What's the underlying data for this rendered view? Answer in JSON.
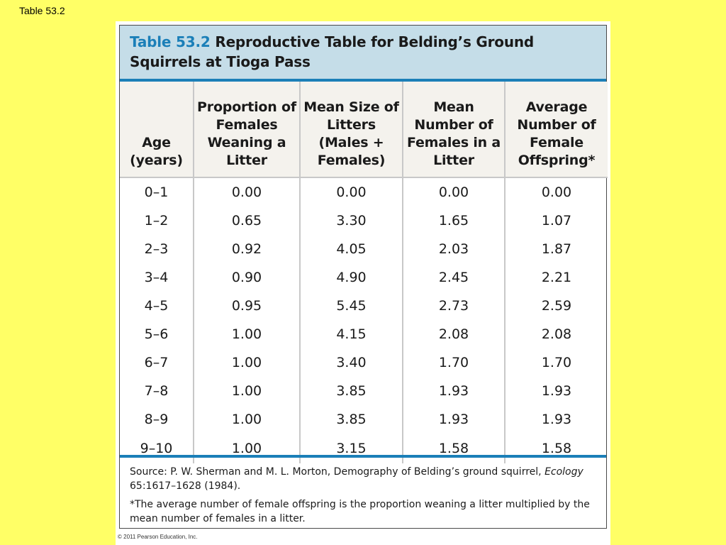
{
  "slide": {
    "title": "Table 53.2"
  },
  "table": {
    "caption_number": "Table 53.2",
    "caption_title": " Reproductive Table for Belding’s Ground Squirrels at Tioga Pass",
    "headers": [
      "Age (years)",
      "Proportion of Females Weaning a Litter",
      "Mean Size of Litters (Males + Females)",
      "Mean Number of Females in a Litter",
      "Average Number of Female Offspring*"
    ],
    "rows": [
      [
        "0–1",
        "0.00",
        "0.00",
        "0.00",
        "0.00"
      ],
      [
        "1–2",
        "0.65",
        "3.30",
        "1.65",
        "1.07"
      ],
      [
        "2–3",
        "0.92",
        "4.05",
        "2.03",
        "1.87"
      ],
      [
        "3–4",
        "0.90",
        "4.90",
        "2.45",
        "2.21"
      ],
      [
        "4–5",
        "0.95",
        "5.45",
        "2.73",
        "2.59"
      ],
      [
        "5–6",
        "1.00",
        "4.15",
        "2.08",
        "2.08"
      ],
      [
        "6–7",
        "1.00",
        "3.40",
        "1.70",
        "1.70"
      ],
      [
        "7–8",
        "1.00",
        "3.85",
        "1.93",
        "1.93"
      ],
      [
        "8–9",
        "1.00",
        "3.85",
        "1.93",
        "1.93"
      ],
      [
        "9–10",
        "1.00",
        "3.15",
        "1.58",
        "1.58"
      ]
    ]
  },
  "footer": {
    "source_prefix": "Source: P. W. Sherman and M. L. Morton, Demography of Belding’s ground squirrel, ",
    "source_journal": "Ecology",
    "source_suffix": " 65:1617–1628 (1984).",
    "footnote": "*The average number of female offspring is the proportion weaning a litter multiplied by the mean number of females in a litter."
  },
  "copyright": "© 2011 Pearson Education, Inc.",
  "colors": {
    "slide_background": "#ffff66",
    "accent_blue": "#1b7fb8",
    "caption_background": "#c5dde8",
    "header_background": "#f4f2ed"
  }
}
